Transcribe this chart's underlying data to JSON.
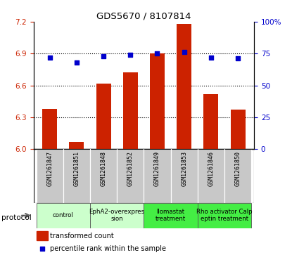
{
  "title": "GDS5670 / 8107814",
  "samples": [
    "GSM1261847",
    "GSM1261851",
    "GSM1261848",
    "GSM1261852",
    "GSM1261849",
    "GSM1261853",
    "GSM1261846",
    "GSM1261850"
  ],
  "bar_values": [
    6.38,
    6.07,
    6.62,
    6.72,
    6.9,
    7.18,
    6.52,
    6.37
  ],
  "dot_values": [
    72,
    68,
    73,
    74,
    75,
    76,
    72,
    71
  ],
  "ylim_left": [
    6.0,
    7.2
  ],
  "ylim_right": [
    0,
    100
  ],
  "yticks_left": [
    6.0,
    6.3,
    6.6,
    6.9,
    7.2
  ],
  "yticks_right": [
    0,
    25,
    50,
    75,
    100
  ],
  "bar_color": "#cc2200",
  "dot_color": "#0000cc",
  "protocol_groups": [
    {
      "label": "control",
      "indices": [
        0,
        1
      ],
      "color": "#ccffcc"
    },
    {
      "label": "EphA2-overexpres\nsion",
      "indices": [
        2,
        3
      ],
      "color": "#ccffcc"
    },
    {
      "label": "llomastat\ntreatment",
      "indices": [
        4,
        5
      ],
      "color": "#44ee44"
    },
    {
      "label": "Rho activator Calp\neptin treatment",
      "indices": [
        6,
        7
      ],
      "color": "#44ee44"
    }
  ],
  "grid_dotted_at": [
    6.3,
    6.6,
    6.9
  ],
  "ylabel_left_color": "#cc2200",
  "ylabel_right_color": "#0000cc",
  "cell_bg": "#c8c8c8",
  "legend_bar_label": "transformed count",
  "legend_dot_label": "percentile rank within the sample",
  "protocol_label": "protocol"
}
